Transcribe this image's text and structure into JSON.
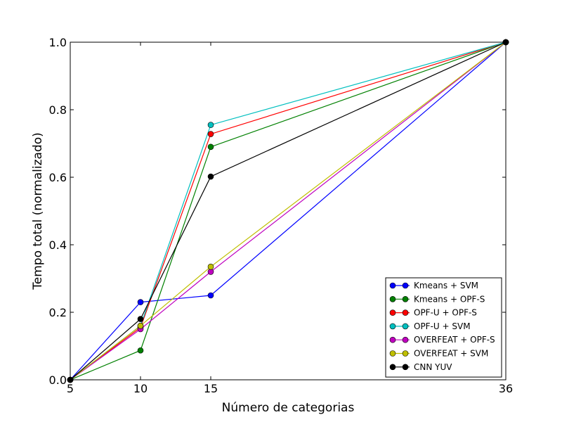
{
  "chart_data": {
    "type": "line",
    "title": "",
    "xlabel": "Número de categorias",
    "ylabel": "Tempo total (normalizado)",
    "x": [
      5,
      10,
      15,
      36
    ],
    "xticks": [
      5,
      10,
      15,
      36
    ],
    "xlim": [
      5,
      36
    ],
    "ylim": [
      0.0,
      1.0
    ],
    "yticks": [
      "0.0",
      "0.2",
      "0.4",
      "0.6",
      "0.8",
      "1.0"
    ],
    "grid": false,
    "legend_position": "lower-right",
    "series": [
      {
        "name": "Kmeans + SVM",
        "color": "#0000ff",
        "values": [
          0.0,
          0.23,
          0.25,
          1.0
        ]
      },
      {
        "name": "Kmeans + OPF-S",
        "color": "#008000",
        "values": [
          0.0,
          0.087,
          0.69,
          1.0
        ]
      },
      {
        "name": "OPF-U + OPF-S",
        "color": "#ff0000",
        "values": [
          0.0,
          0.155,
          0.728,
          1.0
        ]
      },
      {
        "name": "OPF-U + SVM",
        "color": "#00bfbf",
        "values": [
          0.0,
          0.16,
          0.755,
          1.0
        ]
      },
      {
        "name": "OVERFEAT + OPF-S",
        "color": "#bf00bf",
        "values": [
          0.0,
          0.15,
          0.32,
          1.0
        ]
      },
      {
        "name": "OVERFEAT + SVM",
        "color": "#bfbf00",
        "values": [
          0.0,
          0.16,
          0.335,
          1.0
        ]
      },
      {
        "name": "CNN YUV",
        "color": "#000000",
        "values": [
          0.0,
          0.18,
          0.602,
          1.0
        ]
      }
    ]
  }
}
